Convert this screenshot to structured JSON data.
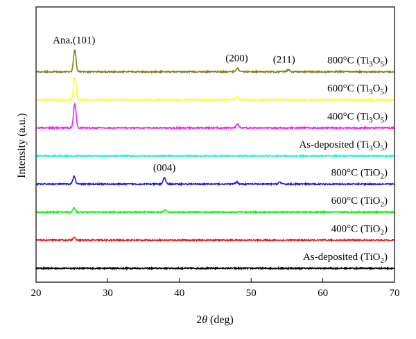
{
  "chart_data": {
    "type": "line",
    "title": "",
    "xlabel_main": "2",
    "xlabel_var": "θ",
    "xlabel_unit": " (deg)",
    "ylabel": "Intensity (a.u.)",
    "xlim": [
      20,
      70
    ],
    "x_ticks": [
      "20",
      "30",
      "40",
      "50",
      "60",
      "70"
    ],
    "grid": false,
    "annotations": [
      {
        "text": "Ana.(101)",
        "x": 25.3,
        "series": 7
      },
      {
        "text": "(200)",
        "x": 48.0,
        "series": 7
      },
      {
        "text": "(211)",
        "x": 54.6,
        "series": 7
      },
      {
        "text": "(004)",
        "x": 37.9,
        "series": 3
      }
    ],
    "series": [
      {
        "label_main": "As-deposited (TiO",
        "label_sub": "2",
        "label_end": ")",
        "color": "#000000",
        "offset": 0,
        "peaks": []
      },
      {
        "label_main": "400°C (TiO",
        "label_sub": "2",
        "label_end": ")",
        "color": "#e31a1c",
        "offset": 1,
        "peaks": [
          {
            "x": 25.3,
            "h": 4
          }
        ]
      },
      {
        "label_main": "600°C (TiO",
        "label_sub": "2",
        "label_end": ")",
        "color": "#22ee22",
        "offset": 2,
        "peaks": [
          {
            "x": 25.3,
            "h": 6
          },
          {
            "x": 38.0,
            "h": 3
          }
        ]
      },
      {
        "label_main": "800°C (TiO",
        "label_sub": "2",
        "label_end": ")",
        "color": "#1a1adf",
        "offset": 3,
        "peaks": [
          {
            "x": 25.3,
            "h": 11
          },
          {
            "x": 37.9,
            "h": 9
          },
          {
            "x": 48.0,
            "h": 3
          },
          {
            "x": 54.0,
            "h": 3
          }
        ]
      },
      {
        "label_main": "As-deposited (Ti",
        "label_sub": "3",
        "label_mid": "O",
        "label_sub2": "5",
        "label_end": ")",
        "color": "#22eeee",
        "offset": 4,
        "peaks": []
      },
      {
        "label_main": "400°C (Ti",
        "label_sub": "3",
        "label_mid": "O",
        "label_sub2": "5",
        "label_end": ")",
        "color": "#ee22ee",
        "offset": 5,
        "peaks": [
          {
            "x": 25.4,
            "h": 35
          },
          {
            "x": 48.1,
            "h": 5
          }
        ]
      },
      {
        "label_main": "600°C (Ti",
        "label_sub": "3",
        "label_mid": "O",
        "label_sub2": "5",
        "label_end": ")",
        "color": "#ffff22",
        "offset": 6,
        "peaks": [
          {
            "x": 25.4,
            "h": 33
          },
          {
            "x": 48.1,
            "h": 5
          }
        ]
      },
      {
        "label_main": "800°C (Ti",
        "label_sub": "3",
        "label_mid": "O",
        "label_sub2": "5",
        "label_end": ")",
        "color": "#808020",
        "offset": 7,
        "peaks": [
          {
            "x": 25.4,
            "h": 31
          },
          {
            "x": 48.1,
            "h": 5
          },
          {
            "x": 55.2,
            "h": 3
          }
        ]
      }
    ]
  }
}
